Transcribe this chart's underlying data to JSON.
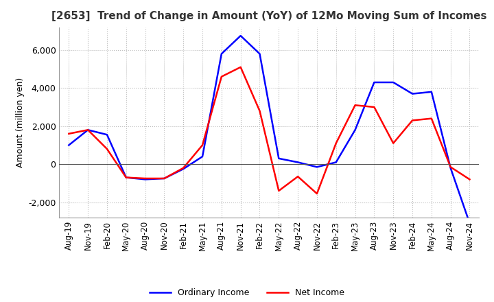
{
  "title": "[2653]  Trend of Change in Amount (YoY) of 12Mo Moving Sum of Incomes",
  "ylabel": "Amount (million yen)",
  "ylim": [
    -2800,
    7200
  ],
  "yticks": [
    -2000,
    0,
    2000,
    4000,
    6000
  ],
  "line_color_ordinary": "#0000FF",
  "line_color_net": "#FF0000",
  "legend_labels": [
    "Ordinary Income",
    "Net Income"
  ],
  "x_labels": [
    "Aug-19",
    "Nov-19",
    "Feb-20",
    "May-20",
    "Aug-20",
    "Nov-20",
    "Feb-21",
    "May-21",
    "Aug-21",
    "Nov-21",
    "Feb-22",
    "May-22",
    "Aug-22",
    "Nov-22",
    "Feb-23",
    "May-23",
    "Aug-23",
    "Nov-23",
    "Feb-24",
    "May-24",
    "Aug-24",
    "Nov-24"
  ],
  "ordinary_income": [
    1000,
    1800,
    1550,
    -700,
    -800,
    -750,
    -250,
    400,
    5800,
    6750,
    5800,
    300,
    100,
    -150,
    100,
    1800,
    4300,
    4300,
    3700,
    3800,
    -200,
    -3100
  ],
  "net_income": [
    1600,
    1800,
    800,
    -700,
    -750,
    -750,
    -200,
    1000,
    4600,
    5100,
    2800,
    -1400,
    -650,
    -1550,
    1100,
    3100,
    3000,
    1100,
    2300,
    2400,
    -150,
    -800
  ],
  "background_color": "#FFFFFF",
  "grid_color": "#BBBBBB"
}
